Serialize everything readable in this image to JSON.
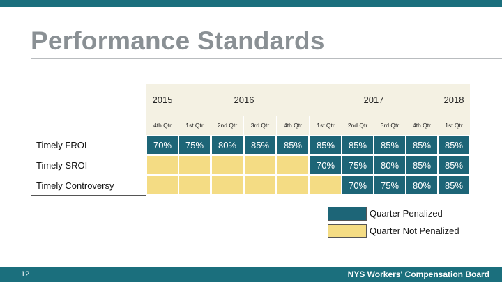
{
  "title": "Performance Standards",
  "years": [
    "2015",
    "2016",
    "2017",
    "2018"
  ],
  "quarters": [
    "4th Qtr",
    "1st Qtr",
    "2nd Qtr",
    "3rd Qtr",
    "4th Qtr",
    "1st Qtr",
    "2nd Qtr",
    "3rd Qtr",
    "4th Qtr",
    "1st Qtr"
  ],
  "rows": [
    {
      "label": "Timely FROI",
      "cells": [
        "70%",
        "75%",
        "80%",
        "85%",
        "85%",
        "85%",
        "85%",
        "85%",
        "85%",
        "85%"
      ],
      "status": [
        "p",
        "p",
        "p",
        "p",
        "p",
        "p",
        "p",
        "p",
        "p",
        "p"
      ]
    },
    {
      "label": "Timely SROI",
      "cells": [
        "",
        "",
        "",
        "",
        "",
        "70%",
        "75%",
        "80%",
        "85%",
        "85%"
      ],
      "status": [
        "n",
        "n",
        "n",
        "n",
        "n",
        "p",
        "p",
        "p",
        "p",
        "p"
      ]
    },
    {
      "label": "Timely Controversy",
      "cells": [
        "",
        "",
        "",
        "",
        "",
        "",
        "70%",
        "75%",
        "80%",
        "85%"
      ],
      "status": [
        "n",
        "n",
        "n",
        "n",
        "n",
        "n",
        "p",
        "p",
        "p",
        "p"
      ]
    }
  ],
  "legend": {
    "penalized": "Quarter Penalized",
    "not_penalized": "Quarter Not Penalized"
  },
  "colors": {
    "penalized": "#1d6577",
    "not_penalized": "#f4dc84",
    "accent": "#1b6f7d"
  },
  "footer": {
    "page_number": "12",
    "organization": "NYS Workers' Compensation Board"
  }
}
